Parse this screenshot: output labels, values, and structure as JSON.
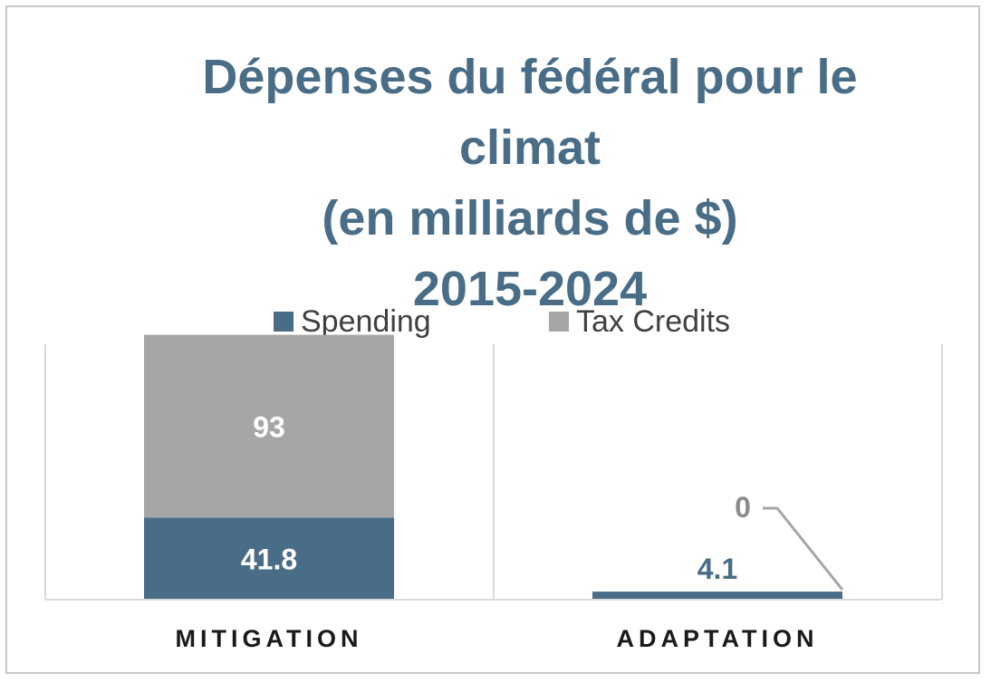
{
  "chart_data": {
    "type": "bar",
    "stacked": true,
    "title_lines": [
      "Dépenses du fédéral pour le",
      "climat",
      "(en milliards de $)",
      "2015-2024"
    ],
    "categories": [
      "MITIGATION",
      "ADAPTATION"
    ],
    "series": [
      {
        "name": "Spending",
        "values": [
          41.8,
          4.1
        ],
        "color": "#4a6d87",
        "labels": [
          "41.8",
          "4.1"
        ]
      },
      {
        "name": "Tax Credits",
        "values": [
          93,
          0
        ],
        "color": "#a6a6a6",
        "labels": [
          "93",
          "0"
        ]
      }
    ],
    "ylim": [
      0,
      130
    ],
    "legend_position": "top",
    "grid": false
  }
}
